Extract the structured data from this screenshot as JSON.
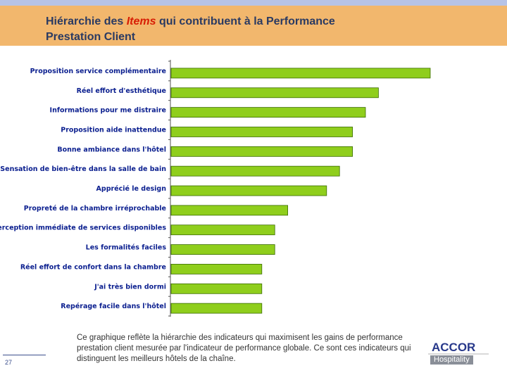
{
  "header": {
    "title_part1": "Hiérarchie des ",
    "title_highlight": "Items",
    "title_part2": " qui contribuent à la Performance",
    "title_line2": "Prestation Client"
  },
  "colors": {
    "bar_fill": "#8fce1c",
    "bar_stroke": "#3a6b00",
    "label": "#0b1f8f",
    "band": "#f2b76d"
  },
  "chart_data": {
    "type": "bar",
    "orientation": "horizontal",
    "title": "",
    "categories": [
      "Proposition service complémentaire",
      "Réel effort d'esthétique",
      "Informations pour me distraire",
      "Proposition aide inattendue",
      "Bonne ambiance dans l'hôtel",
      "Sensation de bien-être dans la salle de bain",
      "Apprécié le design",
      "Propreté de la chambre irréprochable",
      "Perception immédiate de services disponibles",
      "Les formalités faciles",
      "Réel effort de confort dans la chambre",
      "J'ai très bien dormi",
      "Repérage facile dans l'hôtel"
    ],
    "values": [
      100,
      80,
      75,
      70,
      70,
      65,
      60,
      45,
      40,
      40,
      35,
      35,
      35
    ],
    "xlim": [
      0,
      100
    ],
    "grid": false,
    "xlabel": "",
    "ylabel": ""
  },
  "caption": "Ce graphique reflète la hiérarchie des indicateurs qui maximisent les gains de performance prestation client mesurée par l'indicateur de performance globale.  Ce sont ces indicateurs qui distinguent les meilleurs hôtels de la chaîne.",
  "footer": {
    "page_number": "27"
  },
  "logo": {
    "brand": "ACCOR",
    "sub": "Hospitality"
  }
}
